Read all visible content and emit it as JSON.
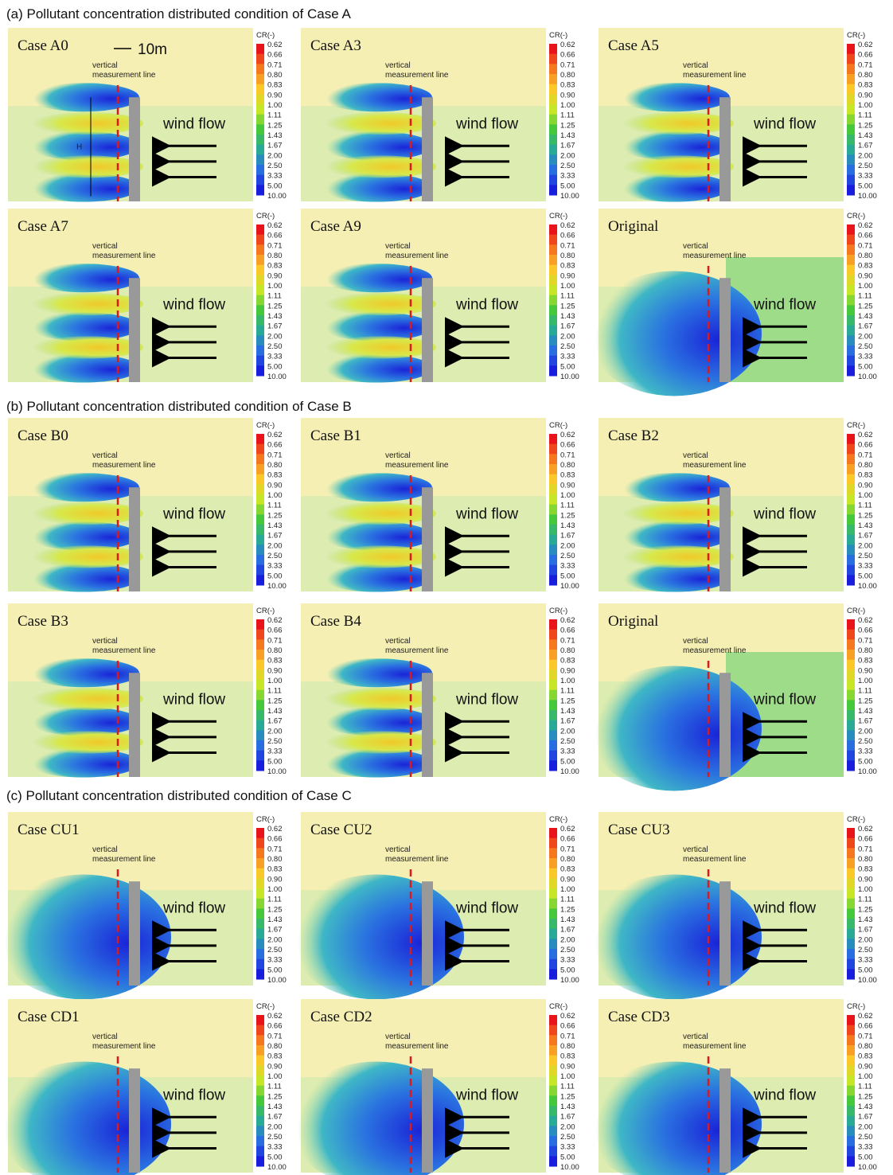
{
  "sections": [
    {
      "title": "(a) Pollutant concentration distributed condition of Case A",
      "panels": [
        "Case A0",
        "Case A3",
        "Case A5",
        "Case A7",
        "Case A9",
        "Original"
      ]
    },
    {
      "title": "(b) Pollutant concentration distributed condition of Case B",
      "panels": [
        "Case B0",
        "Case B1",
        "Case B2",
        "Case B3",
        "Case B4",
        "Original"
      ]
    },
    {
      "title": "(c) Pollutant concentration distributed condition of Case C",
      "panels": [
        "Case CU1",
        "Case CU2",
        "Case CU3",
        "Case CD1",
        "Case CD2",
        "Case CD3"
      ]
    }
  ],
  "labels": {
    "vertical": "vertical",
    "measurement_line": "measurement line",
    "wind_flow": "wind flow",
    "scale": "10m",
    "height": "H"
  },
  "colorbar": {
    "title": "CR(-)",
    "ticks": [
      "0.62",
      "0.66",
      "0.71",
      "0.80",
      "0.83",
      "0.90",
      "1.00",
      "1.11",
      "1.25",
      "1.43",
      "1.67",
      "2.00",
      "2.50",
      "3.33",
      "5.00",
      "10.00"
    ]
  }
}
